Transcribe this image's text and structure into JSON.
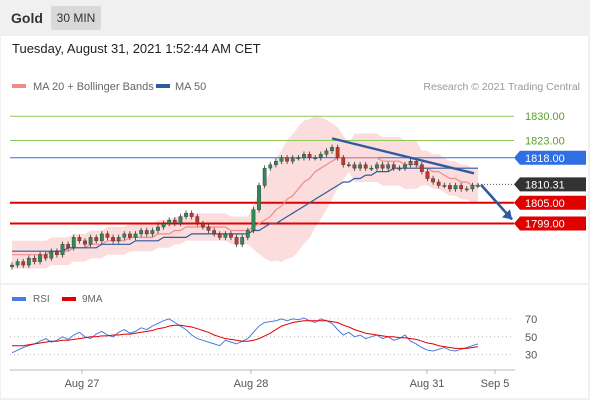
{
  "header": {
    "asset": "Gold",
    "timeframe": "30 MIN"
  },
  "timestamp": "Tuesday, August 31, 2021 1:52:44 AM CET",
  "legend": {
    "ma20": "MA 20 + Bollinger Bands",
    "ma50": "MA 50",
    "copyright": "Research © 2021 Trading Central",
    "rsi": "RSI",
    "rsi_ma": "9MA"
  },
  "colors": {
    "ma20": "#f28a8a",
    "ma50": "#2f5a9e",
    "band": "#fad4d4",
    "resistance": "#8fc95b",
    "pivot": "#2f6fe0",
    "support": "#e00000",
    "last": "#333333",
    "arrow": "#2f5a9e",
    "rsi": "#4a7be0",
    "rsi_ma": "#e00000"
  },
  "chart_data": [
    {
      "type": "line",
      "title": "",
      "x_ticks": [
        "Aug 27",
        "Aug 28",
        "Aug 31",
        "Sep 5"
      ],
      "ylim": [
        1785,
        1837
      ],
      "levels": [
        {
          "value": 1830.0,
          "label": "1830.00",
          "kind": "resistance"
        },
        {
          "value": 1823.0,
          "label": "1823.00",
          "kind": "resistance"
        },
        {
          "value": 1818.0,
          "label": "1818.00",
          "kind": "pivot"
        },
        {
          "value": 1805.0,
          "label": "1805.00",
          "kind": "support"
        },
        {
          "value": 1799.0,
          "label": "1799.00",
          "kind": "support"
        }
      ],
      "last_price": {
        "value": 1810.31,
        "label": "1810.31"
      },
      "candles_close": [
        1787,
        1788,
        1787,
        1789,
        1788,
        1790,
        1789,
        1791,
        1790,
        1793,
        1792,
        1795,
        1794,
        1793,
        1795,
        1794,
        1796,
        1795,
        1794,
        1795,
        1796,
        1795,
        1796,
        1797,
        1796,
        1797,
        1798,
        1799,
        1800,
        1799,
        1801,
        1802,
        1801,
        1799,
        1798,
        1797,
        1796,
        1795,
        1796,
        1795,
        1793,
        1795,
        1797,
        1803,
        1810,
        1815,
        1816,
        1817,
        1818,
        1817,
        1818,
        1818,
        1819,
        1818,
        1818,
        1819,
        1820,
        1821,
        1818,
        1816,
        1816,
        1815,
        1816,
        1815,
        1815,
        1816,
        1815,
        1816,
        1815,
        1815,
        1816,
        1817,
        1816,
        1814,
        1812,
        1811,
        1810,
        1810,
        1809,
        1810,
        1809,
        1809,
        1810,
        1810
      ],
      "ma20": [
        1790,
        1790,
        1790,
        1790,
        1790,
        1790,
        1790,
        1791,
        1791,
        1791,
        1791,
        1792,
        1792,
        1792,
        1793,
        1793,
        1793,
        1794,
        1794,
        1794,
        1794,
        1795,
        1795,
        1795,
        1795,
        1795,
        1796,
        1796,
        1796,
        1797,
        1797,
        1798,
        1798,
        1798,
        1798,
        1798,
        1798,
        1798,
        1798,
        1797,
        1797,
        1797,
        1797,
        1798,
        1799,
        1800,
        1801,
        1803,
        1804,
        1806,
        1807,
        1809,
        1811,
        1812,
        1814,
        1815,
        1816,
        1817,
        1818,
        1818,
        1818,
        1818,
        1818,
        1818,
        1818,
        1818,
        1817,
        1817,
        1817,
        1817,
        1816,
        1816,
        1816,
        1815,
        1815,
        1814,
        1814,
        1813,
        1812,
        1812,
        1811,
        1811,
        1810,
        1810
      ],
      "ma50": [
        1791,
        1791,
        1791,
        1791,
        1791,
        1791,
        1791,
        1791,
        1791,
        1791,
        1792,
        1792,
        1792,
        1792,
        1792,
        1792,
        1793,
        1793,
        1793,
        1793,
        1793,
        1793,
        1794,
        1794,
        1794,
        1794,
        1794,
        1795,
        1795,
        1795,
        1795,
        1795,
        1796,
        1796,
        1796,
        1796,
        1796,
        1796,
        1796,
        1796,
        1796,
        1796,
        1796,
        1797,
        1797,
        1798,
        1799,
        1799,
        1800,
        1801,
        1802,
        1803,
        1804,
        1805,
        1806,
        1807,
        1808,
        1809,
        1810,
        1811,
        1811,
        1812,
        1812,
        1813,
        1813,
        1814,
        1814,
        1814,
        1815,
        1815,
        1815,
        1815,
        1815,
        1815,
        1815,
        1815,
        1815,
        1815,
        1815,
        1815,
        1815,
        1815,
        1815,
        1815
      ]
    },
    {
      "type": "line",
      "title": "",
      "y_ticks": [
        70,
        50,
        30
      ],
      "ylim": [
        15,
        80
      ],
      "series": [
        {
          "name": "RSI",
          "values": [
            32,
            35,
            38,
            40,
            42,
            45,
            48,
            44,
            46,
            50,
            47,
            52,
            55,
            50,
            48,
            53,
            56,
            52,
            50,
            55,
            58,
            54,
            56,
            60,
            58,
            62,
            65,
            68,
            70,
            66,
            62,
            58,
            52,
            48,
            46,
            44,
            42,
            40,
            46,
            44,
            42,
            45,
            48,
            55,
            62,
            66,
            67,
            68,
            70,
            68,
            70,
            69,
            71,
            68,
            66,
            70,
            68,
            65,
            58,
            52,
            55,
            50,
            52,
            48,
            50,
            52,
            48,
            50,
            46,
            48,
            52,
            45,
            42,
            38,
            35,
            34,
            36,
            38,
            35,
            34,
            36,
            38,
            40,
            42
          ]
        },
        {
          "name": "9MA",
          "values": [
            40,
            40,
            40,
            41,
            42,
            43,
            44,
            45,
            45,
            46,
            46,
            47,
            48,
            49,
            50,
            50,
            51,
            51,
            52,
            52,
            53,
            53,
            54,
            55,
            56,
            57,
            59,
            60,
            62,
            63,
            63,
            62,
            61,
            59,
            57,
            55,
            52,
            50,
            48,
            47,
            46,
            45,
            45,
            46,
            48,
            51,
            54,
            58,
            62,
            64,
            66,
            67,
            68,
            68,
            68,
            68,
            68,
            67,
            66,
            63,
            61,
            58,
            56,
            54,
            53,
            52,
            51,
            50,
            50,
            49,
            49,
            48,
            47,
            45,
            43,
            42,
            40,
            39,
            38,
            37,
            37,
            37,
            38,
            39
          ]
        }
      ]
    }
  ]
}
